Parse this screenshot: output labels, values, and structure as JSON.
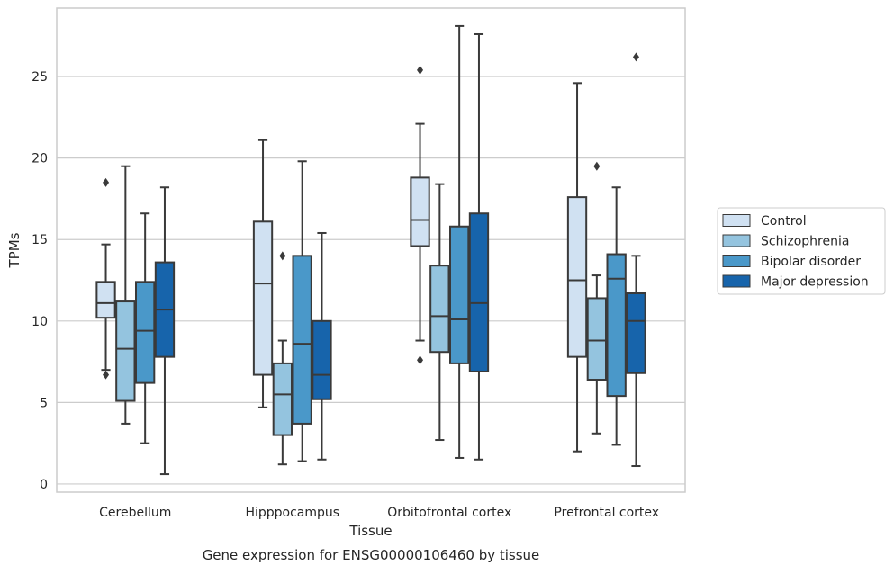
{
  "chart_data": {
    "type": "box",
    "title": "",
    "caption": "Gene expression for ENSG00000106460 by tissue",
    "xlabel": "Tissue",
    "ylabel": "TPMs",
    "ylim": [
      -0.5,
      29.2
    ],
    "yticks": [
      0,
      5,
      10,
      15,
      20,
      25
    ],
    "grid": "horizontal",
    "legend_position": "right",
    "categories": [
      "Cerebellum",
      "Hipppocampus",
      "Orbitofrontal cortex",
      "Prefrontal cortex"
    ],
    "series": [
      {
        "name": "Control",
        "color": "#d0e1f2",
        "boxes": [
          {
            "whisker_low": 7.0,
            "q1": 10.2,
            "median": 11.1,
            "q3": 12.4,
            "whisker_high": 14.7,
            "outliers": [
              18.5,
              6.7
            ]
          },
          {
            "whisker_low": 4.7,
            "q1": 6.7,
            "median": 12.3,
            "q3": 16.1,
            "whisker_high": 21.1,
            "outliers": []
          },
          {
            "whisker_low": 8.8,
            "q1": 14.6,
            "median": 16.2,
            "q3": 18.8,
            "whisker_high": 22.1,
            "outliers": [
              25.4,
              7.6
            ]
          },
          {
            "whisker_low": 2.0,
            "q1": 7.8,
            "median": 12.5,
            "q3": 17.6,
            "whisker_high": 24.6,
            "outliers": []
          }
        ]
      },
      {
        "name": "Schizophrenia",
        "color": "#94c4df",
        "boxes": [
          {
            "whisker_low": 3.7,
            "q1": 5.1,
            "median": 8.3,
            "q3": 11.2,
            "whisker_high": 19.5,
            "outliers": []
          },
          {
            "whisker_low": 1.2,
            "q1": 3.0,
            "median": 5.5,
            "q3": 7.4,
            "whisker_high": 8.8,
            "outliers": [
              14.0
            ]
          },
          {
            "whisker_low": 2.7,
            "q1": 8.1,
            "median": 10.3,
            "q3": 13.4,
            "whisker_high": 18.4,
            "outliers": []
          },
          {
            "whisker_low": 3.1,
            "q1": 6.4,
            "median": 8.8,
            "q3": 11.4,
            "whisker_high": 12.8,
            "outliers": [
              19.5
            ]
          }
        ]
      },
      {
        "name": "Bipolar disorder",
        "color": "#4a98c9",
        "boxes": [
          {
            "whisker_low": 2.5,
            "q1": 6.2,
            "median": 9.4,
            "q3": 12.4,
            "whisker_high": 16.6,
            "outliers": []
          },
          {
            "whisker_low": 1.4,
            "q1": 3.7,
            "median": 8.6,
            "q3": 14.0,
            "whisker_high": 19.8,
            "outliers": []
          },
          {
            "whisker_low": 1.6,
            "q1": 7.4,
            "median": 10.1,
            "q3": 15.8,
            "whisker_high": 28.1,
            "outliers": []
          },
          {
            "whisker_low": 2.4,
            "q1": 5.4,
            "median": 12.6,
            "q3": 14.1,
            "whisker_high": 18.2,
            "outliers": []
          }
        ]
      },
      {
        "name": "Major depression",
        "color": "#1764ab",
        "boxes": [
          {
            "whisker_low": 0.6,
            "q1": 7.8,
            "median": 10.7,
            "q3": 13.6,
            "whisker_high": 18.2,
            "outliers": []
          },
          {
            "whisker_low": 1.5,
            "q1": 5.2,
            "median": 6.7,
            "q3": 10.0,
            "whisker_high": 15.4,
            "outliers": []
          },
          {
            "whisker_low": 1.5,
            "q1": 6.9,
            "median": 11.1,
            "q3": 16.6,
            "whisker_high": 27.6,
            "outliers": []
          },
          {
            "whisker_low": 1.1,
            "q1": 6.8,
            "median": 10.0,
            "q3": 11.7,
            "whisker_high": 14.0,
            "outliers": [
              26.2
            ]
          }
        ]
      }
    ]
  }
}
